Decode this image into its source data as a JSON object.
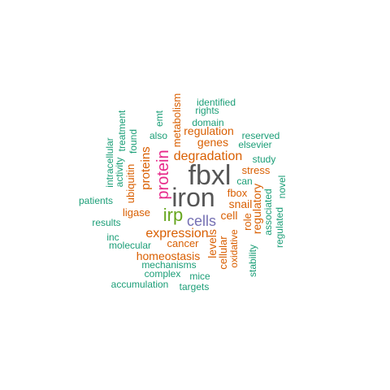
{
  "palette": {
    "teal": "#1b9e77",
    "orange": "#d95f02",
    "purple": "#7570b3",
    "magenta": "#e7298a",
    "green": "#66a61e",
    "gray": "#555555"
  },
  "words": [
    {
      "id": "w-fbxl",
      "text": "fbxl",
      "color": "#555555"
    },
    {
      "id": "w-iron",
      "text": "iron",
      "color": "#555555"
    },
    {
      "id": "w-protein",
      "text": "protein",
      "color": "#e7298a"
    },
    {
      "id": "w-irp",
      "text": "irp",
      "color": "#66a61e"
    },
    {
      "id": "w-cells",
      "text": "cells",
      "color": "#7570b3"
    },
    {
      "id": "w-expression",
      "text": "expression",
      "color": "#d95f02"
    },
    {
      "id": "w-degradation",
      "text": "degradation",
      "color": "#d95f02"
    },
    {
      "id": "w-proteins",
      "text": "proteins",
      "color": "#d95f02"
    },
    {
      "id": "w-metabolism",
      "text": "metabolism",
      "color": "#d95f02"
    },
    {
      "id": "w-regulation",
      "text": "regulation",
      "color": "#d95f02"
    },
    {
      "id": "w-genes",
      "text": "genes",
      "color": "#d95f02"
    },
    {
      "id": "w-stress",
      "text": "stress",
      "color": "#d95f02"
    },
    {
      "id": "w-fbox",
      "text": "fbox",
      "color": "#d95f02"
    },
    {
      "id": "w-snail",
      "text": "snail",
      "color": "#d95f02"
    },
    {
      "id": "w-cell",
      "text": "cell",
      "color": "#d95f02"
    },
    {
      "id": "w-ligase",
      "text": "ligase",
      "color": "#d95f02"
    },
    {
      "id": "w-ubiquitin",
      "text": "ubiquitin",
      "color": "#d95f02"
    },
    {
      "id": "w-cancer",
      "text": "cancer",
      "color": "#d95f02"
    },
    {
      "id": "w-homeostasis",
      "text": "homeostasis",
      "color": "#d95f02"
    },
    {
      "id": "w-levels",
      "text": "levels",
      "color": "#d95f02"
    },
    {
      "id": "w-cellular",
      "text": "cellular",
      "color": "#d95f02"
    },
    {
      "id": "w-oxidative",
      "text": "oxidative",
      "color": "#d95f02"
    },
    {
      "id": "w-role",
      "text": "role",
      "color": "#d95f02"
    },
    {
      "id": "w-regulatory",
      "text": "regulatory",
      "color": "#d95f02"
    },
    {
      "id": "w-identified",
      "text": "identified",
      "color": "#1b9e77"
    },
    {
      "id": "w-rights",
      "text": "rights",
      "color": "#1b9e77"
    },
    {
      "id": "w-domain",
      "text": "domain",
      "color": "#1b9e77"
    },
    {
      "id": "w-reserved",
      "text": "reserved",
      "color": "#1b9e77"
    },
    {
      "id": "w-elsevier",
      "text": "elsevier",
      "color": "#1b9e77"
    },
    {
      "id": "w-study",
      "text": "study",
      "color": "#1b9e77"
    },
    {
      "id": "w-can",
      "text": "can",
      "color": "#1b9e77"
    },
    {
      "id": "w-also",
      "text": "also",
      "color": "#1b9e77"
    },
    {
      "id": "w-emt",
      "text": "emt",
      "color": "#1b9e77"
    },
    {
      "id": "w-found",
      "text": "found",
      "color": "#1b9e77"
    },
    {
      "id": "w-treatment",
      "text": "treatment",
      "color": "#1b9e77"
    },
    {
      "id": "w-activity",
      "text": "activity",
      "color": "#1b9e77"
    },
    {
      "id": "w-intracellular",
      "text": "intracellular",
      "color": "#1b9e77"
    },
    {
      "id": "w-patients",
      "text": "patients",
      "color": "#1b9e77"
    },
    {
      "id": "w-results",
      "text": "results",
      "color": "#1b9e77"
    },
    {
      "id": "w-inc",
      "text": "inc",
      "color": "#1b9e77"
    },
    {
      "id": "w-molecular",
      "text": "molecular",
      "color": "#1b9e77"
    },
    {
      "id": "w-mechanisms",
      "text": "mechanisms",
      "color": "#1b9e77"
    },
    {
      "id": "w-complex",
      "text": "complex",
      "color": "#1b9e77"
    },
    {
      "id": "w-mice",
      "text": "mice",
      "color": "#1b9e77"
    },
    {
      "id": "w-accumulation",
      "text": "accumulation",
      "color": "#1b9e77"
    },
    {
      "id": "w-targets",
      "text": "targets",
      "color": "#1b9e77"
    },
    {
      "id": "w-stability",
      "text": "stability",
      "color": "#1b9e77"
    },
    {
      "id": "w-associated",
      "text": "associated",
      "color": "#1b9e77"
    },
    {
      "id": "w-regulated",
      "text": "regulated",
      "color": "#1b9e77"
    },
    {
      "id": "w-novel",
      "text": "novel",
      "color": "#1b9e77"
    }
  ]
}
